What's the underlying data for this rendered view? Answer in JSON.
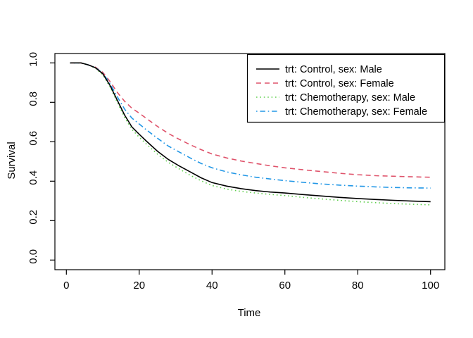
{
  "figure": {
    "background": "#ffffff",
    "foreground": "#000000"
  },
  "chart_data": {
    "type": "line",
    "title": "",
    "xlabel": "Time",
    "ylabel": "Survival",
    "xlim": [
      0,
      100
    ],
    "ylim": [
      0.0,
      1.0
    ],
    "grid": false,
    "legend_position": "top-right",
    "xticks": {
      "values": [
        0,
        20,
        40,
        60,
        80,
        100
      ],
      "labels": [
        "0",
        "20",
        "40",
        "60",
        "80",
        "100"
      ]
    },
    "yticks": {
      "values": [
        0,
        0.2,
        0.4,
        0.6,
        0.8,
        1.0
      ],
      "labels": [
        "0.0",
        "0.2",
        "0.4",
        "0.6",
        "0.8",
        "1.0"
      ]
    },
    "x": [
      1,
      4,
      6,
      8,
      10,
      12,
      14,
      16,
      18,
      20,
      22,
      25,
      28,
      31,
      34,
      37,
      40,
      44,
      48,
      52,
      56,
      60,
      65,
      70,
      75,
      80,
      85,
      90,
      95,
      100
    ],
    "series": [
      {
        "name": "trt: Control, sex: Male",
        "color": "#000000",
        "linetype": "solid",
        "values": [
          1.0,
          1.0,
          0.99,
          0.975,
          0.945,
          0.885,
          0.81,
          0.735,
          0.675,
          0.638,
          0.603,
          0.552,
          0.51,
          0.477,
          0.447,
          0.417,
          0.393,
          0.375,
          0.362,
          0.352,
          0.345,
          0.34,
          0.332,
          0.325,
          0.318,
          0.312,
          0.307,
          0.303,
          0.299,
          0.296
        ]
      },
      {
        "name": "trt: Control, sex: Female",
        "color": "#DF536B",
        "linetype": "dashed",
        "values": [
          1.0,
          1.0,
          0.99,
          0.978,
          0.952,
          0.905,
          0.85,
          0.805,
          0.77,
          0.745,
          0.718,
          0.678,
          0.642,
          0.612,
          0.585,
          0.56,
          0.538,
          0.518,
          0.502,
          0.49,
          0.478,
          0.468,
          0.458,
          0.449,
          0.44,
          0.433,
          0.428,
          0.425,
          0.422,
          0.42
        ]
      },
      {
        "name": "trt: Chemotherapy, sex: Male",
        "color": "#61D04F",
        "linetype": "dotted",
        "values": [
          1.0,
          1.0,
          0.99,
          0.973,
          0.94,
          0.878,
          0.8,
          0.723,
          0.663,
          0.623,
          0.588,
          0.537,
          0.495,
          0.462,
          0.43,
          0.402,
          0.378,
          0.36,
          0.348,
          0.34,
          0.333,
          0.327,
          0.318,
          0.31,
          0.303,
          0.296,
          0.291,
          0.286,
          0.283,
          0.28
        ]
      },
      {
        "name": "trt: Chemotherapy, sex: Female",
        "color": "#2297E6",
        "linetype": "dotdash",
        "values": [
          1.0,
          1.0,
          0.99,
          0.976,
          0.948,
          0.895,
          0.828,
          0.765,
          0.72,
          0.69,
          0.66,
          0.618,
          0.578,
          0.548,
          0.518,
          0.49,
          0.468,
          0.447,
          0.432,
          0.42,
          0.411,
          0.403,
          0.394,
          0.386,
          0.38,
          0.375,
          0.371,
          0.368,
          0.366,
          0.365
        ]
      }
    ]
  },
  "legend": {
    "items": [
      {
        "label": "trt: Control, sex: Male",
        "color": "#000000",
        "linetype": "solid"
      },
      {
        "label": "trt: Control, sex: Female",
        "color": "#DF536B",
        "linetype": "dashed"
      },
      {
        "label": "trt: Chemotherapy, sex: Male",
        "color": "#61D04F",
        "linetype": "dotted"
      },
      {
        "label": "trt: Chemotherapy, sex: Female",
        "color": "#2297E6",
        "linetype": "dotdash"
      }
    ]
  }
}
